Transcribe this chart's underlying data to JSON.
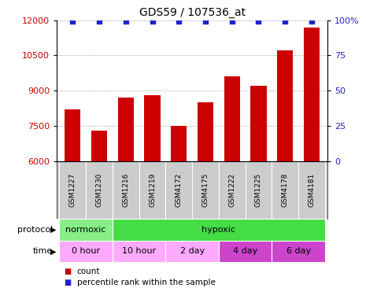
{
  "title": "GDS59 / 107536_at",
  "samples": [
    "GSM1227",
    "GSM1230",
    "GSM1216",
    "GSM1219",
    "GSM4172",
    "GSM4175",
    "GSM1222",
    "GSM1225",
    "GSM4178",
    "GSM4181"
  ],
  "counts": [
    8200,
    7300,
    8700,
    8800,
    7500,
    8500,
    9600,
    9200,
    10700,
    11700
  ],
  "ylim_left": [
    6000,
    12000
  ],
  "ylim_right": [
    0,
    100
  ],
  "yticks_left": [
    6000,
    7500,
    9000,
    10500,
    12000
  ],
  "yticks_right": [
    0,
    25,
    50,
    75,
    100
  ],
  "bar_color": "#cc0000",
  "dot_color": "#2222cc",
  "grid_color": "#888888",
  "sample_bg_color": "#cccccc",
  "protocol_groups": [
    {
      "label": "normoxic",
      "span": [
        0,
        2
      ],
      "color": "#88ee88"
    },
    {
      "label": "hypoxic",
      "span": [
        2,
        10
      ],
      "color": "#44dd44"
    }
  ],
  "time_groups": [
    {
      "label": "0 hour",
      "span": [
        0,
        2
      ],
      "color": "#ffaaff"
    },
    {
      "label": "10 hour",
      "span": [
        2,
        4
      ],
      "color": "#ffaaff"
    },
    {
      "label": "2 day",
      "span": [
        4,
        6
      ],
      "color": "#ffaaff"
    },
    {
      "label": "4 day",
      "span": [
        6,
        8
      ],
      "color": "#cc44cc"
    },
    {
      "label": "6 day",
      "span": [
        8,
        10
      ],
      "color": "#cc44cc"
    }
  ],
  "bg_color": "#ffffff"
}
